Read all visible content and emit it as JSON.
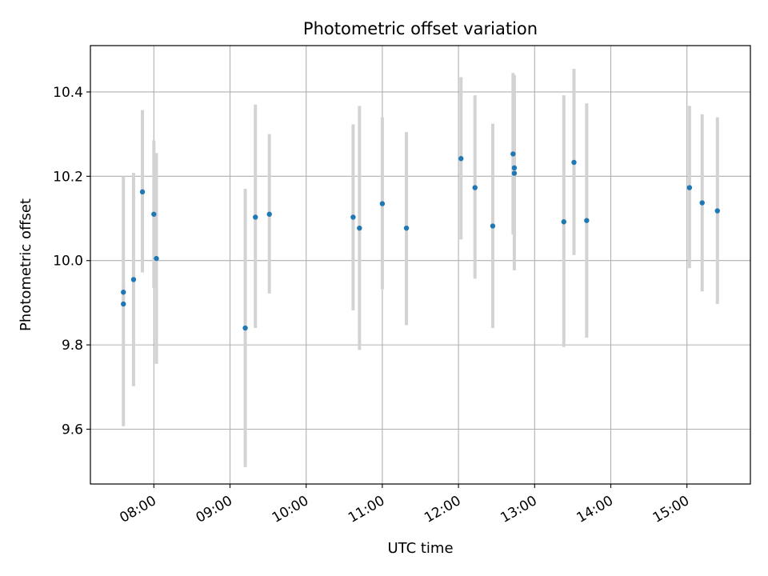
{
  "chart_data": {
    "type": "scatter",
    "title": "Photometric offset variation",
    "xlabel": "UTC time",
    "ylabel": "Photometric offset",
    "x_unit": "UTC time (HH:MM)",
    "xlim": [
      "07:10",
      "15:50"
    ],
    "ylim": [
      9.47,
      10.51
    ],
    "x_ticks": [
      "08:00",
      "09:00",
      "10:00",
      "11:00",
      "12:00",
      "13:00",
      "14:00",
      "15:00"
    ],
    "y_ticks": [
      9.6,
      9.8,
      10.0,
      10.2,
      10.4
    ],
    "y_tick_labels": [
      "9.6",
      "9.8",
      "10.0",
      "10.2",
      "10.4"
    ],
    "grid": true,
    "errorbar_color": "#d3d3d3",
    "marker_color": "#1f77b4",
    "points": [
      {
        "x": "07:36",
        "y": 9.925,
        "ylow": 9.905,
        "yhigh": 9.945
      },
      {
        "x": "07:36",
        "y": 9.897,
        "ylow": 9.607,
        "yhigh": 10.2
      },
      {
        "x": "07:44",
        "y": 9.955,
        "ylow": 9.702,
        "yhigh": 10.208
      },
      {
        "x": "07:51",
        "y": 10.163,
        "ylow": 9.972,
        "yhigh": 10.357
      },
      {
        "x": "08:00",
        "y": 10.11,
        "ylow": 9.935,
        "yhigh": 10.285
      },
      {
        "x": "08:02",
        "y": 10.005,
        "ylow": 9.755,
        "yhigh": 10.255
      },
      {
        "x": "09:12",
        "y": 9.84,
        "ylow": 9.51,
        "yhigh": 10.17
      },
      {
        "x": "09:20",
        "y": 10.103,
        "ylow": 9.84,
        "yhigh": 10.37
      },
      {
        "x": "09:31",
        "y": 10.11,
        "ylow": 9.922,
        "yhigh": 10.3
      },
      {
        "x": "10:37",
        "y": 10.103,
        "ylow": 9.882,
        "yhigh": 10.323
      },
      {
        "x": "10:42",
        "y": 10.077,
        "ylow": 9.788,
        "yhigh": 10.367
      },
      {
        "x": "11:00",
        "y": 10.135,
        "ylow": 9.932,
        "yhigh": 10.34
      },
      {
        "x": "11:19",
        "y": 10.077,
        "ylow": 9.847,
        "yhigh": 10.305
      },
      {
        "x": "12:02",
        "y": 10.242,
        "ylow": 10.05,
        "yhigh": 10.435
      },
      {
        "x": "12:13",
        "y": 10.173,
        "ylow": 9.957,
        "yhigh": 10.392
      },
      {
        "x": "12:27",
        "y": 10.082,
        "ylow": 9.84,
        "yhigh": 10.325
      },
      {
        "x": "12:43",
        "y": 10.253,
        "ylow": 10.062,
        "yhigh": 10.445
      },
      {
        "x": "12:44",
        "y": 10.22,
        "ylow": 10.05,
        "yhigh": 10.39
      },
      {
        "x": "12:44",
        "y": 10.207,
        "ylow": 9.977,
        "yhigh": 10.44
      },
      {
        "x": "13:23",
        "y": 10.092,
        "ylow": 9.795,
        "yhigh": 10.392
      },
      {
        "x": "13:31",
        "y": 10.233,
        "ylow": 10.013,
        "yhigh": 10.455
      },
      {
        "x": "13:41",
        "y": 10.095,
        "ylow": 9.817,
        "yhigh": 10.373
      },
      {
        "x": "15:02",
        "y": 10.173,
        "ylow": 9.982,
        "yhigh": 10.367
      },
      {
        "x": "15:12",
        "y": 10.137,
        "ylow": 9.927,
        "yhigh": 10.347
      },
      {
        "x": "15:24",
        "y": 10.118,
        "ylow": 9.897,
        "yhigh": 10.34
      }
    ]
  }
}
